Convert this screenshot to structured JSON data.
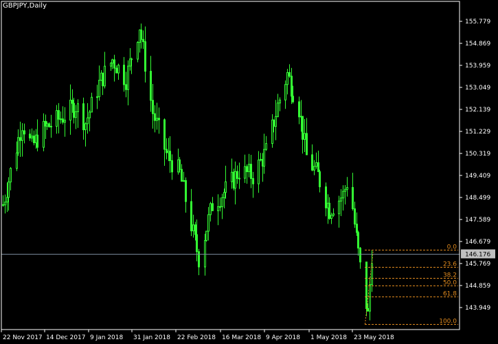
{
  "window": {
    "title": "GBPJPY,Daily"
  },
  "colors": {
    "background": "#000000",
    "axis": "#ffffff",
    "candle": "#33ff33",
    "fib": "#e08a1e",
    "price_line": "#778899",
    "price_badge": "#c0c0c0"
  },
  "price_axis": {
    "labels": [
      "155.779",
      "154.869",
      "153.959",
      "153.049",
      "152.139",
      "151.229",
      "150.319",
      "149.409",
      "148.499",
      "147.589",
      "146.679",
      "145.769",
      "144.859",
      "143.949"
    ]
  },
  "time_axis": {
    "labels": [
      "22 Nov 2017",
      "14 Dec 2017",
      "9 Jan 2018",
      "31 Jan 2018",
      "22 Feb 2018",
      "16 Mar 2018",
      "9 Apr 2018",
      "1 May 2018",
      "23 May 2018"
    ]
  },
  "current_price": {
    "label": "146.176",
    "value": 146.176
  },
  "fibonacci": {
    "levels": [
      {
        "label": "0.0"
      },
      {
        "label": "23.6"
      },
      {
        "label": "38.2"
      },
      {
        "label": "50.0"
      },
      {
        "label": "61.8"
      },
      {
        "label": "100.0"
      }
    ]
  },
  "chart_data": {
    "type": "candlestick",
    "symbol": "GBPJPY",
    "timeframe": "Daily",
    "y_range": [
      143.1,
      156.6
    ],
    "x_range": [
      "2017-11-20",
      "2018-05-31"
    ],
    "key_points": [
      {
        "date": "2017-11-20",
        "price": 148.2
      },
      {
        "date": "2017-11-30",
        "price": 151.6
      },
      {
        "date": "2017-12-05",
        "price": 150.6
      },
      {
        "date": "2017-12-11",
        "price": 151.3
      },
      {
        "date": "2017-12-22",
        "price": 151.9
      },
      {
        "date": "2017-12-28",
        "price": 152.3
      },
      {
        "date": "2018-01-02",
        "price": 151.6
      },
      {
        "date": "2018-01-09",
        "price": 153.2
      },
      {
        "date": "2018-01-16",
        "price": 154.2
      },
      {
        "date": "2018-01-23",
        "price": 153.4
      },
      {
        "date": "2018-01-30",
        "price": 155.6
      },
      {
        "date": "2018-02-06",
        "price": 152.0
      },
      {
        "date": "2018-02-13",
        "price": 150.3
      },
      {
        "date": "2018-02-20",
        "price": 149.5
      },
      {
        "date": "2018-02-27",
        "price": 147.0
      },
      {
        "date": "2018-03-02",
        "price": 146.0
      },
      {
        "date": "2018-03-09",
        "price": 148.2
      },
      {
        "date": "2018-03-16",
        "price": 148.8
      },
      {
        "date": "2018-03-23",
        "price": 149.6
      },
      {
        "date": "2018-03-30",
        "price": 149.4
      },
      {
        "date": "2018-04-06",
        "price": 150.4
      },
      {
        "date": "2018-04-12",
        "price": 152.3
      },
      {
        "date": "2018-04-17",
        "price": 153.6
      },
      {
        "date": "2018-04-23",
        "price": 152.2
      },
      {
        "date": "2018-04-27",
        "price": 150.2
      },
      {
        "date": "2018-05-03",
        "price": 149.4
      },
      {
        "date": "2018-05-09",
        "price": 148.0
      },
      {
        "date": "2018-05-16",
        "price": 148.6
      },
      {
        "date": "2018-05-19",
        "price": 149.4
      },
      {
        "date": "2018-05-22",
        "price": 147.4
      },
      {
        "date": "2018-05-25",
        "price": 145.6
      },
      {
        "date": "2018-05-29",
        "price": 143.6
      },
      {
        "date": "2018-05-31",
        "price": 146.2
      }
    ]
  }
}
